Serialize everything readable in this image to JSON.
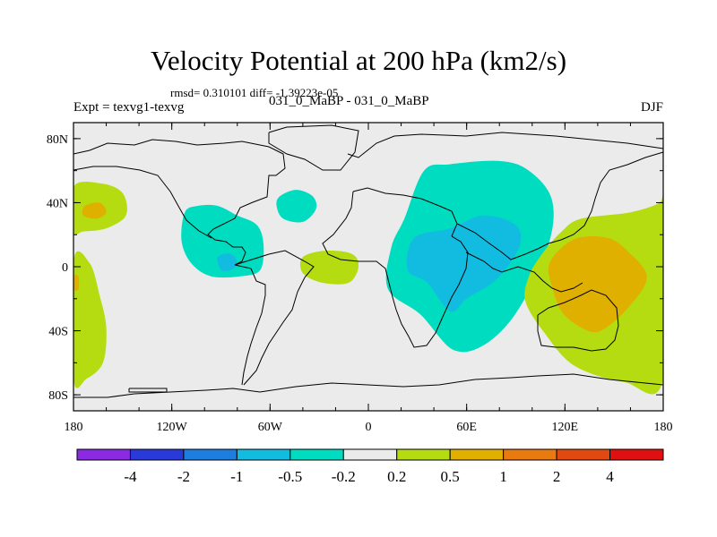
{
  "chart_data": {
    "type": "heatmap",
    "title": "Velocity Potential at 200 hPa (km2/s)",
    "subtitle_stats": "rmsd= 0.310101 diff= -1.39223e-05",
    "comparison": "031_0_MaBP - 031_0_MaBP",
    "experiment": "Expt = texvg1-texvg",
    "season": "DJF",
    "x_range": [
      -180,
      180
    ],
    "y_range": [
      -90,
      90
    ],
    "x_ticks": [
      {
        "value": -180,
        "label": "180"
      },
      {
        "value": -120,
        "label": "120W"
      },
      {
        "value": -60,
        "label": "60W"
      },
      {
        "value": 0,
        "label": "0"
      },
      {
        "value": 60,
        "label": "60E"
      },
      {
        "value": 120,
        "label": "120E"
      },
      {
        "value": 180,
        "label": "180"
      }
    ],
    "y_ticks": [
      {
        "value": 80,
        "label": "80N"
      },
      {
        "value": 40,
        "label": "40N"
      },
      {
        "value": 0,
        "label": "0"
      },
      {
        "value": -40,
        "label": "40S"
      },
      {
        "value": -80,
        "label": "80S"
      }
    ],
    "colorbar": {
      "levels": [
        "-4",
        "-2",
        "-1",
        "-0.5",
        "-0.2",
        "0.2",
        "0.5",
        "1",
        "2",
        "4"
      ],
      "colors": [
        "#8a2be2",
        "#2a3ad8",
        "#1e7ee0",
        "#12bce0",
        "#00dcc0",
        "#ebebeb",
        "#b5dc10",
        "#e0b000",
        "#e87a10",
        "#e04a10",
        "#e01010"
      ]
    },
    "regions": [
      {
        "name": "north-pacific-positive",
        "level": 0.2,
        "color": "#b5dc10",
        "points": [
          [
            -180,
            50
          ],
          [
            -163,
            52
          ],
          [
            -150,
            46
          ],
          [
            -148,
            32
          ],
          [
            -160,
            24
          ],
          [
            -174,
            22
          ],
          [
            -180,
            22
          ]
        ]
      },
      {
        "name": "north-pacific-core",
        "level": 0.5,
        "color": "#e0b000",
        "points": [
          [
            -173,
            38
          ],
          [
            -164,
            40
          ],
          [
            -160,
            34
          ],
          [
            -166,
            30
          ],
          [
            -174,
            32
          ]
        ]
      },
      {
        "name": "south-pacific-positive",
        "level": 0.2,
        "color": "#b5dc10",
        "points": [
          [
            -180,
            4
          ],
          [
            -170,
            2
          ],
          [
            -164,
            -18
          ],
          [
            -160,
            -38
          ],
          [
            -162,
            -60
          ],
          [
            -172,
            -70
          ],
          [
            -180,
            -70
          ]
        ]
      },
      {
        "name": "south-pacific-core",
        "level": 0.5,
        "color": "#e0b000",
        "points": [
          [
            -180,
            -6
          ],
          [
            -177,
            -6
          ],
          [
            -177,
            -14
          ],
          [
            -180,
            -14
          ]
        ]
      },
      {
        "name": "central-america-negative",
        "level": -0.2,
        "color": "#00dcc0",
        "points": [
          [
            -112,
            34
          ],
          [
            -104,
            38
          ],
          [
            -92,
            38
          ],
          [
            -80,
            32
          ],
          [
            -68,
            26
          ],
          [
            -64,
            14
          ],
          [
            -66,
            -2
          ],
          [
            -78,
            -6
          ],
          [
            -96,
            -6
          ],
          [
            -108,
            2
          ],
          [
            -114,
            16
          ]
        ]
      },
      {
        "name": "central-america-core",
        "level": -0.5,
        "color": "#12bce0",
        "points": [
          [
            -92,
            6
          ],
          [
            -84,
            8
          ],
          [
            -80,
            2
          ],
          [
            -84,
            -2
          ],
          [
            -90,
            -2
          ]
        ]
      },
      {
        "name": "north-atlantic-negative",
        "level": -0.2,
        "color": "#00dcc0",
        "points": [
          [
            -54,
            44
          ],
          [
            -44,
            48
          ],
          [
            -34,
            44
          ],
          [
            -32,
            36
          ],
          [
            -40,
            28
          ],
          [
            -52,
            30
          ],
          [
            -56,
            38
          ]
        ]
      },
      {
        "name": "tropical-atlantic-positive",
        "level": 0.2,
        "color": "#b5dc10",
        "points": [
          [
            -40,
            6
          ],
          [
            -26,
            10
          ],
          [
            -10,
            8
          ],
          [
            -6,
            0
          ],
          [
            -12,
            -10
          ],
          [
            -28,
            -10
          ],
          [
            -40,
            -4
          ]
        ]
      },
      {
        "name": "indian-ocean-negative",
        "level": -0.2,
        "color": "#00dcc0",
        "points": [
          [
            34,
            60
          ],
          [
            50,
            64
          ],
          [
            80,
            66
          ],
          [
            98,
            60
          ],
          [
            112,
            42
          ],
          [
            110,
            14
          ],
          [
            92,
            -26
          ],
          [
            72,
            -48
          ],
          [
            52,
            -52
          ],
          [
            32,
            -30
          ],
          [
            12,
            -14
          ],
          [
            14,
            12
          ],
          [
            22,
            30
          ]
        ]
      },
      {
        "name": "indian-ocean-core",
        "level": -0.5,
        "color": "#12bce0",
        "points": [
          [
            28,
            18
          ],
          [
            50,
            24
          ],
          [
            70,
            32
          ],
          [
            90,
            26
          ],
          [
            92,
            12
          ],
          [
            78,
            -8
          ],
          [
            60,
            -20
          ],
          [
            50,
            -28
          ],
          [
            36,
            -10
          ],
          [
            24,
            -2
          ]
        ]
      },
      {
        "name": "west-pacific-positive",
        "level": 0.2,
        "color": "#b5dc10",
        "points": [
          [
            118,
            22
          ],
          [
            130,
            30
          ],
          [
            160,
            34
          ],
          [
            178,
            40
          ],
          [
            180,
            46
          ],
          [
            180,
            -70
          ],
          [
            156,
            -72
          ],
          [
            126,
            -62
          ],
          [
            108,
            -42
          ],
          [
            96,
            -22
          ],
          [
            98,
            -6
          ],
          [
            106,
            8
          ]
        ]
      },
      {
        "name": "west-pacific-core",
        "level": 0.5,
        "color": "#e0b000",
        "points": [
          [
            116,
            10
          ],
          [
            128,
            18
          ],
          [
            146,
            18
          ],
          [
            158,
            10
          ],
          [
            170,
            -6
          ],
          [
            160,
            -24
          ],
          [
            142,
            -40
          ],
          [
            130,
            -38
          ],
          [
            118,
            -28
          ],
          [
            112,
            -12
          ],
          [
            110,
            0
          ]
        ]
      }
    ]
  }
}
